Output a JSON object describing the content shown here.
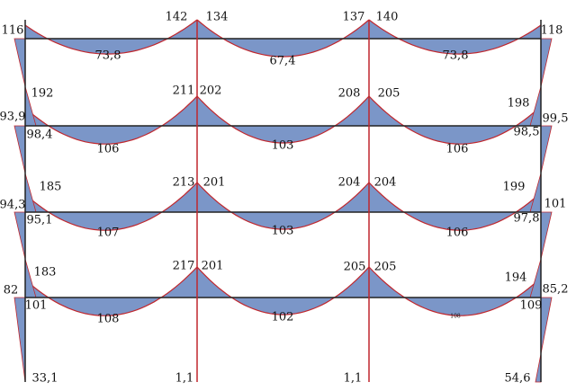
{
  "labels": [
    "116",
    "142",
    "134",
    "137",
    "140",
    "118",
    "73,8",
    "67,4",
    "73,8",
    "192",
    "211",
    "202",
    "208",
    "205",
    "198",
    "93,9",
    "98,4",
    "99,5",
    "98,5",
    "106",
    "103",
    "106",
    "185",
    "213",
    "201",
    "204",
    "204",
    "199",
    "94,3",
    "95,1",
    "101",
    "97,8",
    "107",
    "103",
    "106",
    "183",
    "217",
    "201",
    "205",
    "205",
    "194",
    "82",
    "101",
    "85,2",
    "109",
    "108",
    "102",
    "108",
    "33,1",
    "1,1",
    "1,1",
    "54,6"
  ]
}
